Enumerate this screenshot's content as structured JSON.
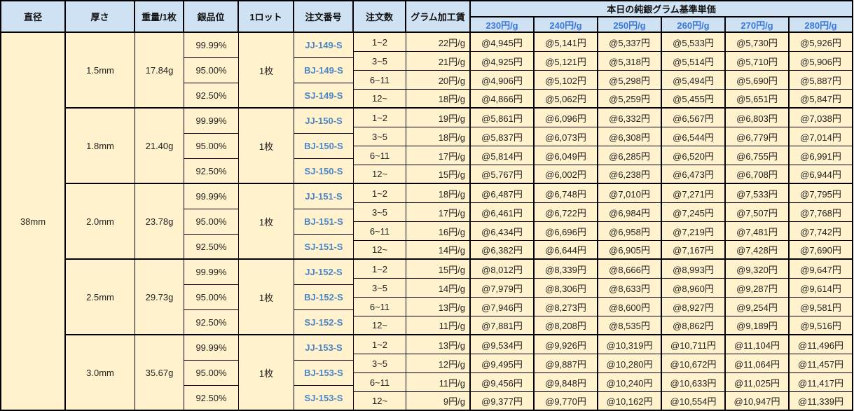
{
  "header": {
    "diameter": "直径",
    "thickness": "厚さ",
    "weight": "重量/1枚",
    "grade": "銀品位",
    "lot": "1ロット",
    "order_number": "注文番号",
    "order_qty": "注文数",
    "processing_fee": "グラム加工賃",
    "price_group_title": "本日の純銀グラム基準単価",
    "price_headers": [
      "230円/g",
      "240円/g",
      "250円/g",
      "260円/g",
      "270円/g",
      "280円/g"
    ]
  },
  "colors": {
    "header_bg": "#cfe2f3",
    "body_bg": "#fff2cc",
    "accent_blue": "#3c78d8"
  },
  "diameter": "38mm",
  "groups": [
    {
      "thickness": "1.5mm",
      "weight": "17.84g",
      "lot": "1枚",
      "grades": [
        "99.99%",
        "95.00%",
        "92.50%"
      ],
      "order_numbers": [
        "JJ-149-S",
        "BJ-149-S",
        "SJ-149-S"
      ],
      "tiers": [
        {
          "qty": "1~2",
          "fee": "22円/g",
          "prices": [
            "@4,945円",
            "@5,141円",
            "@5,337円",
            "@5,533円",
            "@5,730円",
            "@5,926円"
          ]
        },
        {
          "qty": "3~5",
          "fee": "21円/g",
          "prices": [
            "@4,925円",
            "@5,121円",
            "@5,318円",
            "@5,514円",
            "@5,710円",
            "@5,906円"
          ]
        },
        {
          "qty": "6~11",
          "fee": "20円/g",
          "prices": [
            "@4,906円",
            "@5,102円",
            "@5,298円",
            "@5,494円",
            "@5,690円",
            "@5,887円"
          ]
        },
        {
          "qty": "12~",
          "fee": "18円/g",
          "prices": [
            "@4,866円",
            "@5,062円",
            "@5,259円",
            "@5,455円",
            "@5,651円",
            "@5,847円"
          ]
        }
      ]
    },
    {
      "thickness": "1.8mm",
      "weight": "21.40g",
      "lot": "1枚",
      "grades": [
        "99.99%",
        "95.00%",
        "92.50%"
      ],
      "order_numbers": [
        "JJ-150-S",
        "BJ-150-S",
        "SJ-150-S"
      ],
      "tiers": [
        {
          "qty": "1~2",
          "fee": "19円/g",
          "prices": [
            "@5,861円",
            "@6,096円",
            "@6,332円",
            "@6,567円",
            "@6,803円",
            "@7,038円"
          ]
        },
        {
          "qty": "3~5",
          "fee": "18円/g",
          "prices": [
            "@5,837円",
            "@6,073円",
            "@6,308円",
            "@6,544円",
            "@6,779円",
            "@7,014円"
          ]
        },
        {
          "qty": "6~11",
          "fee": "17円/g",
          "prices": [
            "@5,814円",
            "@6,049円",
            "@6,285円",
            "@6,520円",
            "@6,755円",
            "@6,991円"
          ]
        },
        {
          "qty": "12~",
          "fee": "15円/g",
          "prices": [
            "@5,767円",
            "@6,002円",
            "@6,238円",
            "@6,473円",
            "@6,708円",
            "@6,944円"
          ]
        }
      ]
    },
    {
      "thickness": "2.0mm",
      "weight": "23.78g",
      "lot": "1枚",
      "grades": [
        "99.99%",
        "95.00%",
        "92.50%"
      ],
      "order_numbers": [
        "JJ-151-S",
        "BJ-151-S",
        "SJ-151-S"
      ],
      "tiers": [
        {
          "qty": "1~2",
          "fee": "18円/g",
          "prices": [
            "@6,487円",
            "@6,748円",
            "@7,010円",
            "@7,271円",
            "@7,533円",
            "@7,795円"
          ]
        },
        {
          "qty": "3~5",
          "fee": "17円/g",
          "prices": [
            "@6,461円",
            "@6,722円",
            "@6,984円",
            "@7,245円",
            "@7,507円",
            "@7,768円"
          ]
        },
        {
          "qty": "6~11",
          "fee": "16円/g",
          "prices": [
            "@6,434円",
            "@6,696円",
            "@6,958円",
            "@7,219円",
            "@7,481円",
            "@7,742円"
          ]
        },
        {
          "qty": "12~",
          "fee": "14円/g",
          "prices": [
            "@6,382円",
            "@6,644円",
            "@6,905円",
            "@7,167円",
            "@7,428円",
            "@7,690円"
          ]
        }
      ]
    },
    {
      "thickness": "2.5mm",
      "weight": "29.73g",
      "lot": "1枚",
      "grades": [
        "99.99%",
        "95.00%",
        "92.50%"
      ],
      "order_numbers": [
        "JJ-152-S",
        "BJ-152-S",
        "SJ-152-S"
      ],
      "tiers": [
        {
          "qty": "1~2",
          "fee": "15円/g",
          "prices": [
            "@8,012円",
            "@8,339円",
            "@8,666円",
            "@8,993円",
            "@9,320円",
            "@9,647円"
          ]
        },
        {
          "qty": "3~5",
          "fee": "14円/g",
          "prices": [
            "@7,979円",
            "@8,306円",
            "@8,633円",
            "@8,960円",
            "@9,287円",
            "@9,614円"
          ]
        },
        {
          "qty": "6~11",
          "fee": "13円/g",
          "prices": [
            "@7,946円",
            "@8,273円",
            "@8,600円",
            "@8,927円",
            "@9,254円",
            "@9,581円"
          ]
        },
        {
          "qty": "12~",
          "fee": "11円/g",
          "prices": [
            "@7,881円",
            "@8,208円",
            "@8,535円",
            "@8,862円",
            "@9,189円",
            "@9,516円"
          ]
        }
      ]
    },
    {
      "thickness": "3.0mm",
      "weight": "35.67g",
      "lot": "1枚",
      "grades": [
        "99.99%",
        "95.00%",
        "92.50%"
      ],
      "order_numbers": [
        "JJ-153-S",
        "BJ-153-S",
        "SJ-153-S"
      ],
      "tiers": [
        {
          "qty": "1~2",
          "fee": "13円/g",
          "prices": [
            "@9,534円",
            "@9,926円",
            "@10,319円",
            "@10,711円",
            "@11,104円",
            "@11,496円"
          ]
        },
        {
          "qty": "3~5",
          "fee": "12円/g",
          "prices": [
            "@9,495円",
            "@9,887円",
            "@10,280円",
            "@10,672円",
            "@11,064円",
            "@11,457円"
          ]
        },
        {
          "qty": "6~11",
          "fee": "11円/g",
          "prices": [
            "@9,456円",
            "@9,848円",
            "@10,240円",
            "@10,633円",
            "@11,025円",
            "@11,417円"
          ]
        },
        {
          "qty": "12~",
          "fee": "9円/g",
          "prices": [
            "@9,377円",
            "@9,770円",
            "@10,162円",
            "@10,554円",
            "@10,947円",
            "@11,339円"
          ]
        }
      ]
    }
  ]
}
